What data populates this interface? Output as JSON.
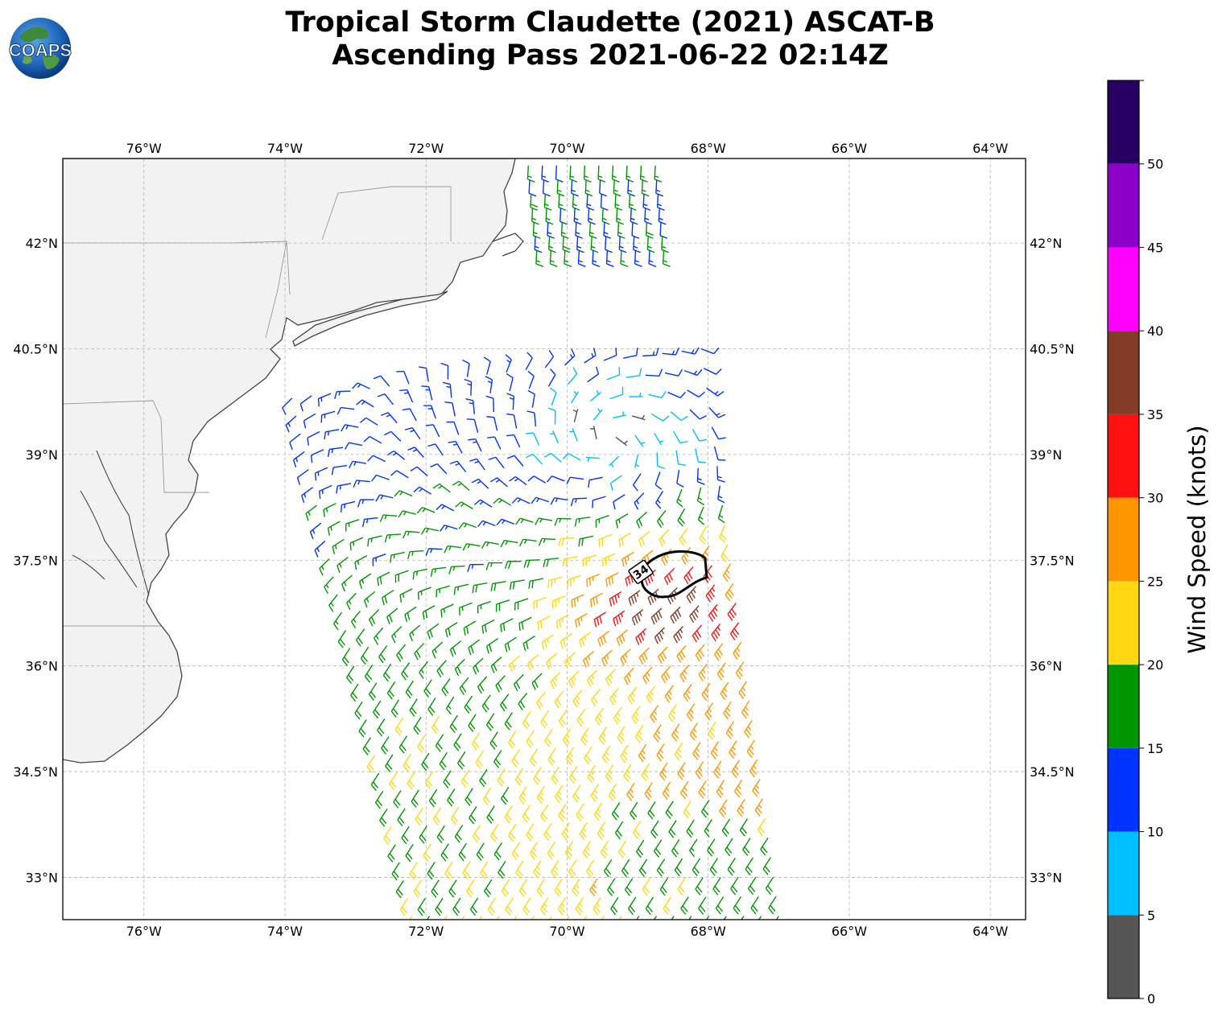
{
  "title": {
    "line1": "Tropical Storm Claudette (2021) ASCAT-B",
    "line2": "Ascending Pass 2021-06-22 02:14Z"
  },
  "logo": {
    "text": "COAPS",
    "icon": "globe-logo-icon"
  },
  "map": {
    "lon_range": [
      -77.15,
      -63.5
    ],
    "lat_range": [
      32.4,
      43.2
    ],
    "lon_ticks": [
      -76,
      -74,
      -72,
      -70,
      -68,
      -66,
      -64
    ],
    "lon_tick_labels": [
      "76°W",
      "74°W",
      "72°W",
      "70°W",
      "68°W",
      "66°W",
      "64°W"
    ],
    "lat_ticks": [
      42,
      40.5,
      39,
      37.5,
      36,
      34.5,
      33
    ],
    "lat_tick_labels": [
      "42°N",
      "40.5°N",
      "39°N",
      "37.5°N",
      "36°N",
      "34.5°N",
      "33°N"
    ],
    "gridlines": true,
    "land_color": "#f2f2f2",
    "coast_color": "#444444",
    "storm_center": {
      "lon": -69.4,
      "lat": 39.2
    },
    "contour_34kt": {
      "label": "34",
      "center": {
        "lon": -68.5,
        "lat": 37.3
      }
    },
    "swath_corners": [
      [
        -73.9,
        39.8
      ],
      [
        -68.1,
        40.5
      ],
      [
        -67.0,
        32.45
      ],
      [
        -72.2,
        32.45
      ]
    ]
  },
  "colorbar": {
    "title": "Wind Speed (knots)",
    "bounds": [
      0,
      5,
      10,
      15,
      20,
      25,
      30,
      35,
      40,
      45,
      50,
      55
    ],
    "tick_labels": [
      "0",
      "5",
      "10",
      "15",
      "20",
      "25",
      "30",
      "35",
      "40",
      "45",
      "50"
    ],
    "colors": [
      "#555555",
      "#00bfff",
      "#0033ff",
      "#009600",
      "#ffd712",
      "#ff9600",
      "#ff1010",
      "#823c28",
      "#ff00ff",
      "#8c00c8",
      "#280064"
    ]
  }
}
